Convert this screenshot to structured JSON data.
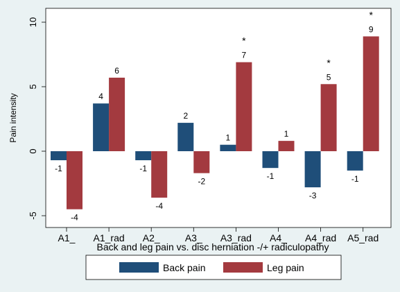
{
  "chart_data": {
    "type": "bar",
    "xlabel": "Back and leg pain vs. disc herniation -/+ radiculopathy",
    "ylabel": "Pain intensity",
    "ylim": [
      -6,
      10.5
    ],
    "yticks": [
      -5,
      0,
      5,
      10
    ],
    "grid": false,
    "legend_position": "bottom",
    "categories": [
      "A1_",
      "A1_rad",
      "A2_",
      "A3_",
      "A3_rad",
      "A4_",
      "A4_rad",
      "A5_rad"
    ],
    "series": [
      {
        "name": "Back pain",
        "color": "#1f4e79",
        "values": [
          -0.7,
          3.7,
          -0.7,
          2.2,
          0.5,
          -1.3,
          -2.8,
          -1.5
        ],
        "labels": [
          "-1",
          "4",
          "-1",
          "2",
          "1",
          "-1",
          "-3",
          "-1"
        ]
      },
      {
        "name": "Leg pain",
        "color": "#a33a3f",
        "values": [
          -4.5,
          5.7,
          -3.6,
          -1.7,
          6.9,
          0.8,
          5.2,
          8.9
        ],
        "labels": [
          "-4",
          "6",
          "-4",
          "-2",
          "7",
          "1",
          "5",
          "9"
        ]
      }
    ],
    "significance_markers": [
      {
        "category": "A3_rad",
        "text": "*"
      },
      {
        "category": "A4_rad",
        "text": "*"
      },
      {
        "category": "A5_rad",
        "text": "*"
      }
    ]
  }
}
